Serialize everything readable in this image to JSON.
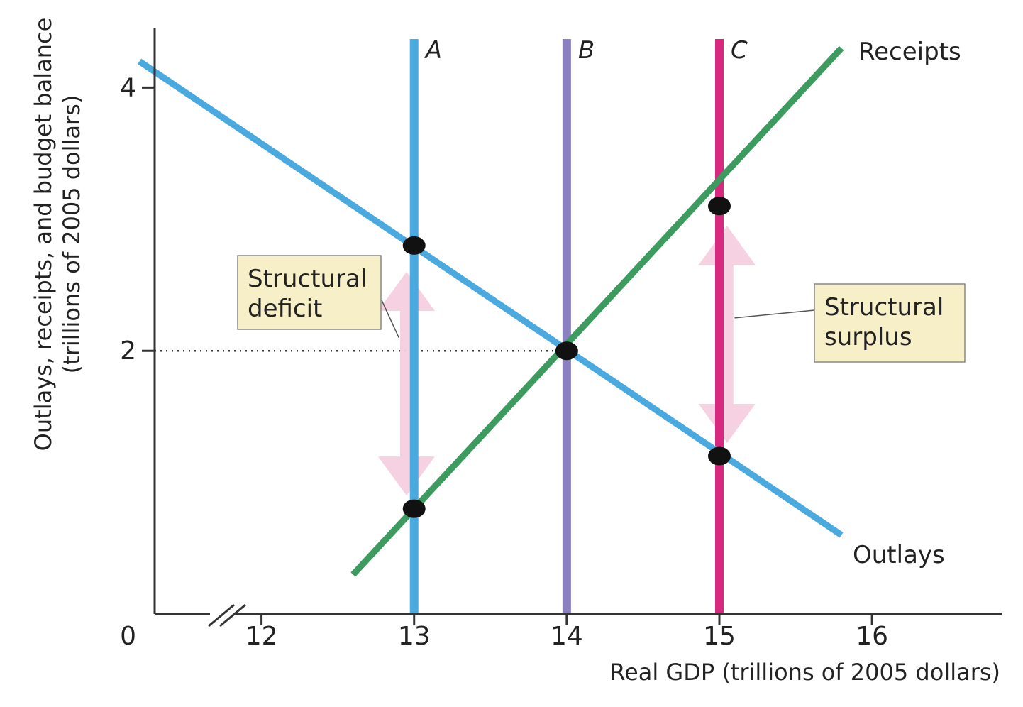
{
  "chart_data": {
    "type": "line",
    "xlabel": "Real GDP (trillions of 2005 dollars)",
    "ylabel_lines": [
      "Outlays, receipts, and budget balance",
      "(trillions of 2005 dollars)"
    ],
    "origin_label": "0",
    "x_ticks": [
      12,
      13,
      14,
      15,
      16
    ],
    "y_ticks": [
      2,
      4
    ],
    "xlim": [
      11.3,
      16.85
    ],
    "ylim": [
      0,
      4.45
    ],
    "axis_break": true,
    "grid": false,
    "series": [
      {
        "name": "Receipts",
        "color": "#3d9b5f",
        "points": [
          [
            12.6,
            0.3
          ],
          [
            15.8,
            4.3
          ]
        ]
      },
      {
        "name": "Outlays",
        "color": "#4aa9de",
        "points": [
          [
            11.2,
            4.2
          ],
          [
            15.8,
            0.6
          ]
        ]
      }
    ],
    "vertical_lines": [
      {
        "label": "A",
        "x": 13,
        "color": "#4aa9de"
      },
      {
        "label": "B",
        "x": 14,
        "color": "#8a7fbf"
      },
      {
        "label": "C",
        "x": 15,
        "color": "#d8287f"
      }
    ],
    "points": [
      {
        "x": 13,
        "y": 2.8
      },
      {
        "x": 13,
        "y": 0.8
      },
      {
        "x": 14,
        "y": 2.0
      },
      {
        "x": 15,
        "y": 3.1
      },
      {
        "x": 15,
        "y": 1.2
      }
    ],
    "reference_line": {
      "y": 2.0,
      "x_from": 11.3,
      "x_to": 14,
      "style": "dotted"
    },
    "arrows": [
      {
        "x": 12.95,
        "y_from": 0.9,
        "y_to": 2.6,
        "color": "#f5cfe0"
      },
      {
        "x": 15.05,
        "y_from": 1.3,
        "y_to": 2.95,
        "color": "#f5cfe0"
      }
    ],
    "annotations": [
      {
        "name": "structural-deficit",
        "lines": [
          "Structural",
          "deficit"
        ],
        "target": [
          12.9,
          2.1
        ]
      },
      {
        "name": "structural-surplus",
        "lines": [
          "Structural",
          "surplus"
        ],
        "target": [
          15.1,
          2.25
        ]
      }
    ],
    "colors": {
      "callout_fill": "#f7efc8",
      "callout_border": "#888888",
      "point": "#111111",
      "axis": "#333333"
    }
  }
}
